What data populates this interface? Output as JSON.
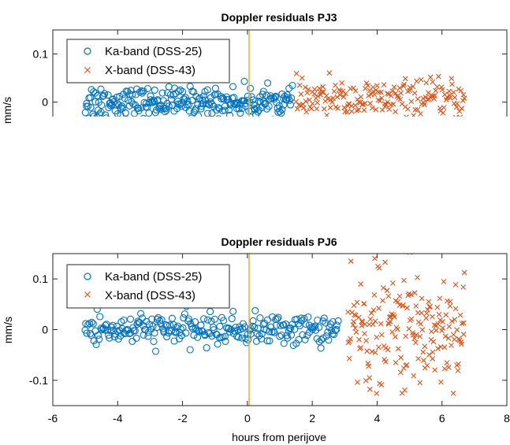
{
  "chart_data": [
    {
      "type": "scatter",
      "title": "Doppler residuals PJ3",
      "ylabel": "mm/s",
      "xlim": [
        -6,
        8
      ],
      "ylim": [
        -0.03,
        0.15
      ],
      "yticks": [
        0,
        0.1
      ],
      "ytick_labels": [
        "0",
        "0.1"
      ],
      "vline_x": 0,
      "legend_position": "top-left",
      "series": [
        {
          "name": "Ka-band (DSS-25)",
          "marker": "circle",
          "color": "#0072bd",
          "x_range": [
            -5.0,
            1.4
          ],
          "spread": 0.015,
          "center": 0.0
        },
        {
          "name": "X-band (DSS-43)",
          "marker": "x",
          "color": "#d95319",
          "x_range": [
            1.5,
            6.7
          ],
          "spread": 0.02,
          "center": 0.005
        }
      ]
    },
    {
      "type": "scatter",
      "title": "Doppler residuals PJ6",
      "ylabel": "mm/s",
      "xlabel": "hours from perijove",
      "xlim": [
        -6,
        8
      ],
      "ylim": [
        -0.15,
        0.15
      ],
      "xticks": [
        -6,
        -4,
        -2,
        0,
        2,
        4,
        6,
        8
      ],
      "xtick_labels": [
        "-6",
        "-4",
        "-2",
        "0",
        "2",
        "4",
        "6",
        "8"
      ],
      "yticks": [
        -0.1,
        0,
        0.1
      ],
      "ytick_labels": [
        "-0.1",
        "0",
        "0.1"
      ],
      "vline_x": 0,
      "legend_position": "top-left",
      "series": [
        {
          "name": "Ka-band (DSS-25)",
          "marker": "circle",
          "color": "#0072bd",
          "x_range": [
            -5.0,
            2.8
          ],
          "spread": 0.015,
          "center": 0.0
        },
        {
          "name": "X-band (DSS-43)",
          "marker": "x",
          "color": "#d95319",
          "x_range": [
            3.1,
            6.7
          ],
          "spread": 0.06,
          "center": 0.0
        }
      ]
    }
  ]
}
